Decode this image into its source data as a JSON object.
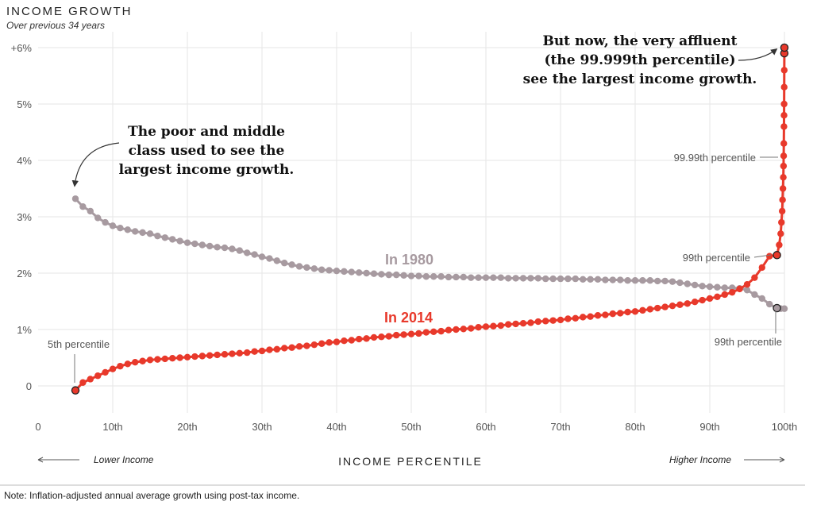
{
  "chart_data": {
    "type": "line",
    "title": "INCOME GROWTH",
    "subtitle": "Over previous 34 years",
    "xlabel": "INCOME PERCENTILE",
    "xlim": [
      0,
      100
    ],
    "ylim": [
      -0.5,
      6.2
    ],
    "y_ticks": [
      {
        "value": 0,
        "label": "0"
      },
      {
        "value": 1,
        "label": "1%"
      },
      {
        "value": 2,
        "label": "2%"
      },
      {
        "value": 3,
        "label": "3%"
      },
      {
        "value": 4,
        "label": "4%"
      },
      {
        "value": 5,
        "label": "5%"
      },
      {
        "value": 6,
        "label": "+6%"
      }
    ],
    "x_ticks": [
      {
        "value": 0,
        "label": "0"
      },
      {
        "value": 10,
        "label": "10th"
      },
      {
        "value": 20,
        "label": "20th"
      },
      {
        "value": 30,
        "label": "30th"
      },
      {
        "value": 40,
        "label": "40th"
      },
      {
        "value": 50,
        "label": "50th"
      },
      {
        "value": 60,
        "label": "60th"
      },
      {
        "value": 70,
        "label": "70th"
      },
      {
        "value": 80,
        "label": "80th"
      },
      {
        "value": 90,
        "label": "90th"
      },
      {
        "value": 100,
        "label": "100th"
      }
    ],
    "grid": true,
    "lower_label": "Lower Income",
    "higher_label": "Higher Income",
    "note": "Note: Inflation-adjusted annual average growth using post-tax income.",
    "series": [
      {
        "name": "In 1980",
        "color": "#a79aa0",
        "x": [
          5,
          6,
          7,
          8,
          9,
          10,
          11,
          12,
          13,
          14,
          15,
          16,
          17,
          18,
          19,
          20,
          21,
          22,
          23,
          24,
          25,
          26,
          27,
          28,
          29,
          30,
          31,
          32,
          33,
          34,
          35,
          36,
          37,
          38,
          39,
          40,
          41,
          42,
          43,
          44,
          45,
          46,
          47,
          48,
          49,
          50,
          51,
          52,
          53,
          54,
          55,
          56,
          57,
          58,
          59,
          60,
          61,
          62,
          63,
          64,
          65,
          66,
          67,
          68,
          69,
          70,
          71,
          72,
          73,
          74,
          75,
          76,
          77,
          78,
          79,
          80,
          81,
          82,
          83,
          84,
          85,
          86,
          87,
          88,
          89,
          90,
          91,
          92,
          93,
          94,
          95,
          96,
          97,
          98,
          99,
          99.5,
          100
        ],
        "y": [
          3.32,
          3.18,
          3.1,
          2.98,
          2.9,
          2.84,
          2.8,
          2.77,
          2.74,
          2.72,
          2.7,
          2.66,
          2.63,
          2.6,
          2.57,
          2.54,
          2.52,
          2.5,
          2.48,
          2.46,
          2.45,
          2.43,
          2.4,
          2.36,
          2.33,
          2.29,
          2.26,
          2.22,
          2.18,
          2.15,
          2.12,
          2.1,
          2.08,
          2.06,
          2.05,
          2.04,
          2.03,
          2.02,
          2.01,
          2.0,
          1.99,
          1.98,
          1.97,
          1.97,
          1.96,
          1.95,
          1.95,
          1.94,
          1.94,
          1.94,
          1.93,
          1.93,
          1.93,
          1.92,
          1.92,
          1.92,
          1.92,
          1.92,
          1.91,
          1.91,
          1.91,
          1.91,
          1.91,
          1.9,
          1.9,
          1.9,
          1.9,
          1.9,
          1.89,
          1.89,
          1.89,
          1.88,
          1.88,
          1.88,
          1.87,
          1.87,
          1.87,
          1.87,
          1.86,
          1.86,
          1.85,
          1.83,
          1.81,
          1.79,
          1.77,
          1.76,
          1.75,
          1.74,
          1.74,
          1.73,
          1.7,
          1.62,
          1.55,
          1.45,
          1.38,
          1.37,
          1.37
        ]
      },
      {
        "name": "In 2014",
        "color": "#e8392b",
        "x": [
          5,
          6,
          7,
          8,
          9,
          10,
          11,
          12,
          13,
          14,
          15,
          16,
          17,
          18,
          19,
          20,
          21,
          22,
          23,
          24,
          25,
          26,
          27,
          28,
          29,
          30,
          31,
          32,
          33,
          34,
          35,
          36,
          37,
          38,
          39,
          40,
          41,
          42,
          43,
          44,
          45,
          46,
          47,
          48,
          49,
          50,
          51,
          52,
          53,
          54,
          55,
          56,
          57,
          58,
          59,
          60,
          61,
          62,
          63,
          64,
          65,
          66,
          67,
          68,
          69,
          70,
          71,
          72,
          73,
          74,
          75,
          76,
          77,
          78,
          79,
          80,
          81,
          82,
          83,
          84,
          85,
          86,
          87,
          88,
          89,
          90,
          91,
          92,
          93,
          94,
          95,
          96,
          97,
          98,
          99,
          99.3,
          99.5,
          99.6,
          99.7,
          99.75,
          99.8,
          99.85,
          99.88,
          99.9,
          99.92,
          99.94,
          99.95,
          99.96,
          99.97,
          99.98,
          99.99,
          99.995,
          99.999
        ],
        "y": [
          -0.08,
          0.06,
          0.12,
          0.18,
          0.24,
          0.3,
          0.35,
          0.39,
          0.42,
          0.44,
          0.46,
          0.47,
          0.48,
          0.49,
          0.5,
          0.51,
          0.52,
          0.53,
          0.54,
          0.55,
          0.56,
          0.57,
          0.58,
          0.59,
          0.61,
          0.62,
          0.64,
          0.65,
          0.67,
          0.68,
          0.7,
          0.71,
          0.73,
          0.75,
          0.77,
          0.78,
          0.8,
          0.81,
          0.83,
          0.84,
          0.86,
          0.87,
          0.88,
          0.9,
          0.91,
          0.92,
          0.93,
          0.95,
          0.96,
          0.97,
          0.99,
          1.0,
          1.01,
          1.02,
          1.04,
          1.05,
          1.06,
          1.07,
          1.09,
          1.1,
          1.11,
          1.12,
          1.14,
          1.15,
          1.16,
          1.17,
          1.19,
          1.2,
          1.22,
          1.23,
          1.25,
          1.26,
          1.28,
          1.29,
          1.31,
          1.32,
          1.34,
          1.36,
          1.38,
          1.4,
          1.42,
          1.44,
          1.46,
          1.49,
          1.52,
          1.55,
          1.58,
          1.62,
          1.66,
          1.72,
          1.8,
          1.92,
          2.1,
          2.3,
          2.32,
          2.5,
          2.7,
          2.9,
          3.1,
          3.3,
          3.5,
          3.7,
          3.9,
          4.08,
          4.3,
          4.6,
          4.8,
          5.0,
          5.3,
          5.6,
          5.9,
          6.0,
          6.0
        ]
      }
    ],
    "annotations": {
      "poor_middle": [
        "The poor and middle",
        "class used to see the",
        "largest income growth."
      ],
      "affluent": [
        "But now, the very affluent",
        "(the 99.999th percentile)",
        "see the largest income growth."
      ],
      "p5": "5th percentile",
      "p9999": "99.99th percentile",
      "p99_2014": "99th percentile",
      "p99_1980": "99th percentile"
    }
  }
}
